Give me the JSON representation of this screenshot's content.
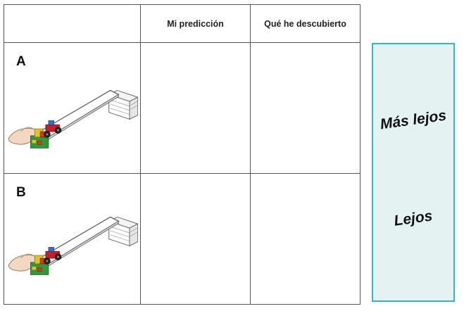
{
  "table": {
    "headers": {
      "trial": "",
      "prediction": "Mi predicción",
      "discovery": "Qué he descubierto"
    },
    "rows": [
      {
        "label": "A",
        "prediction": "",
        "discovery": "",
        "illustration": "car-on-ramp-image"
      },
      {
        "label": "B",
        "prediction": "",
        "discovery": "",
        "illustration": "car-on-ramp-image"
      }
    ]
  },
  "distance_panel": {
    "far_label": "Más lejos",
    "near_label": "Lejos",
    "border_color": "#35b6c6",
    "fill_color": "#e4f3f1"
  }
}
